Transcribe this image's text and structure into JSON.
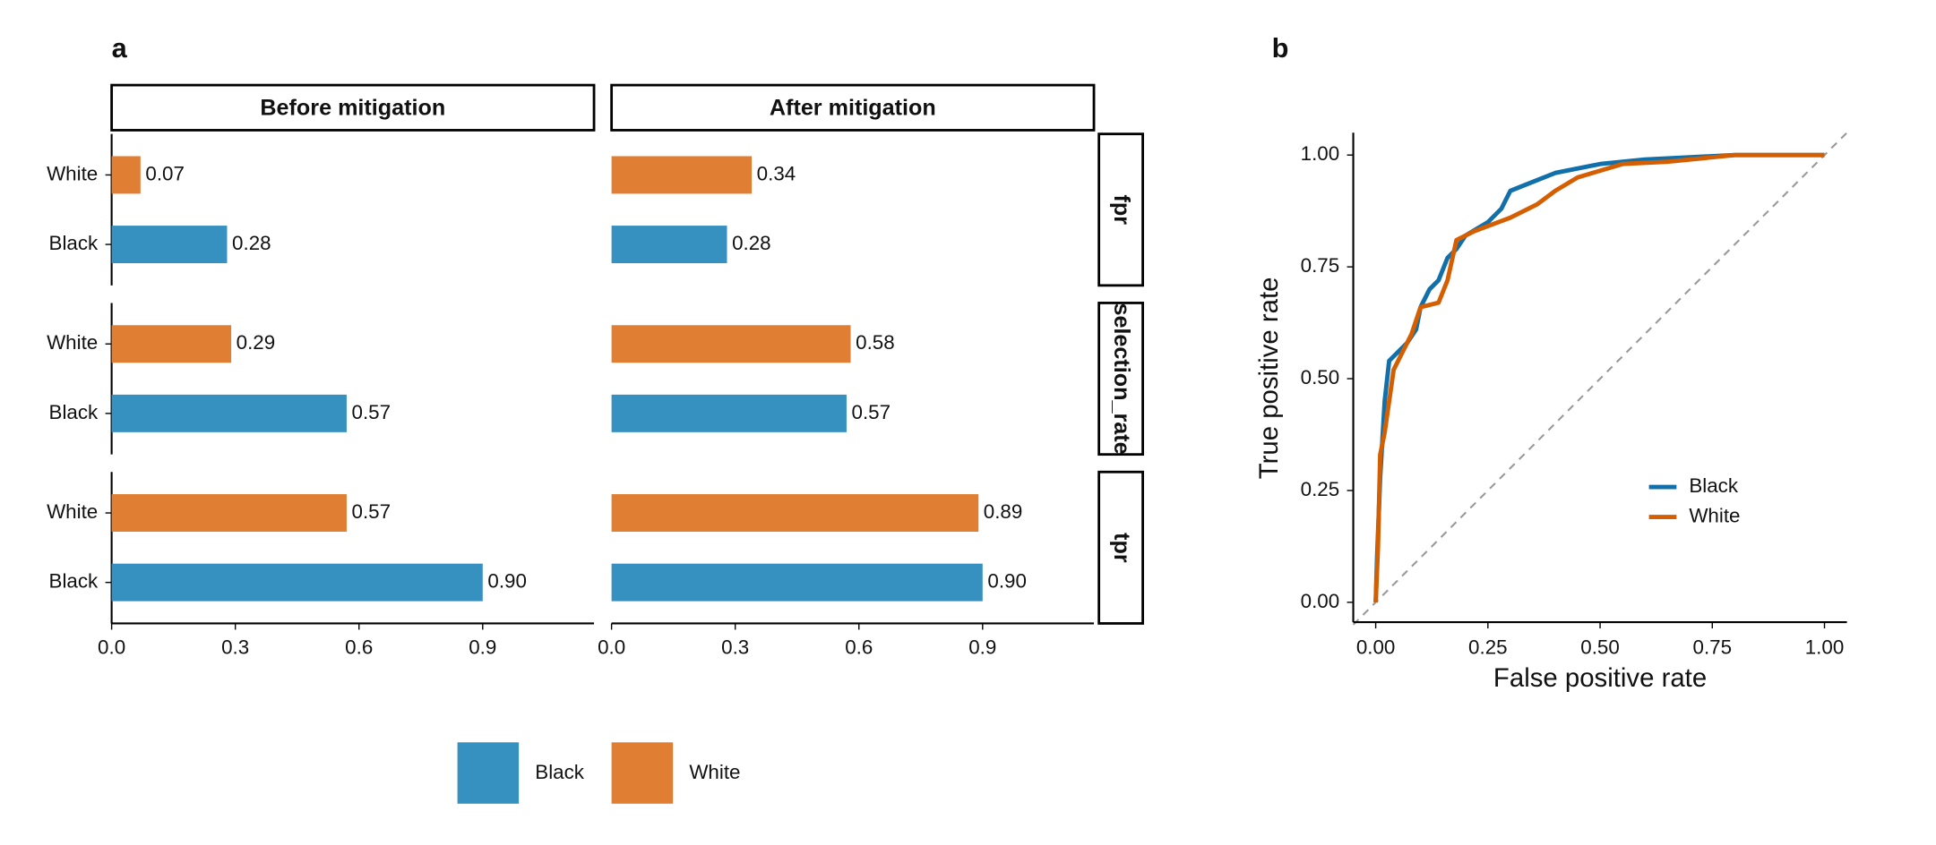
{
  "chart_data": [
    {
      "type": "bar",
      "orientation": "horizontal",
      "panel_label": "a",
      "columns": [
        "Before mitigation",
        "After mitigation"
      ],
      "rows": [
        "fpr",
        "selection_rate",
        "tpr"
      ],
      "categories": [
        "White",
        "Black"
      ],
      "series": [
        {
          "name": "Black",
          "color": "#3690c0",
          "values": [
            [
              0.28,
              0.57,
              0.9
            ],
            [
              0.28,
              0.57,
              0.9
            ]
          ],
          "value_labels": [
            [
              "0.28",
              "0.57",
              "0.90"
            ],
            [
              "0.28",
              "0.57",
              "0.90"
            ]
          ]
        },
        {
          "name": "White",
          "color": "#e07f34",
          "values": [
            [
              0.07,
              0.29,
              0.57
            ],
            [
              0.34,
              0.58,
              0.89
            ]
          ],
          "value_labels": [
            [
              "0.07",
              "0.29",
              "0.57"
            ],
            [
              "0.34",
              "0.58",
              "0.89"
            ]
          ]
        }
      ],
      "xlim": [
        0,
        1.17
      ],
      "xticks": [
        {
          "value": 0,
          "label": "0.0"
        },
        0.3,
        0.6,
        0.9
      ],
      "legend": "bottom"
    },
    {
      "type": "line",
      "panel_label": "b",
      "xlabel": "False positive rate",
      "ylabel": "True positive rate",
      "series": [
        {
          "name": "Black",
          "color": "#1170aa",
          "x": [
            0,
            0.003,
            0.01,
            0.02,
            0.03,
            0.05,
            0.07,
            0.09,
            0.1,
            0.12,
            0.14,
            0.16,
            0.18,
            0.2,
            0.25,
            0.28,
            0.3,
            0.35,
            0.4,
            0.5,
            0.6,
            0.7,
            0.8,
            1
          ],
          "y": [
            0,
            0.1,
            0.28,
            0.45,
            0.54,
            0.56,
            0.58,
            0.61,
            0.66,
            0.7,
            0.72,
            0.77,
            0.79,
            0.82,
            0.85,
            0.88,
            0.92,
            0.94,
            0.96,
            0.98,
            0.99,
            0.995,
            1,
            1
          ]
        },
        {
          "name": "White",
          "color": "#d55e00",
          "x": [
            0,
            0.005,
            0.01,
            0.02,
            0.03,
            0.04,
            0.06,
            0.08,
            0.1,
            0.14,
            0.16,
            0.18,
            0.22,
            0.3,
            0.36,
            0.4,
            0.45,
            0.55,
            0.65,
            0.8,
            1
          ],
          "y": [
            0,
            0.12,
            0.33,
            0.38,
            0.45,
            0.52,
            0.56,
            0.6,
            0.66,
            0.67,
            0.72,
            0.81,
            0.83,
            0.86,
            0.89,
            0.92,
            0.95,
            0.98,
            0.985,
            1,
            1
          ]
        }
      ],
      "xlim": [
        -0.05,
        1.05
      ],
      "ylim": [
        -0.05,
        1.05
      ],
      "xticks": [
        {
          "value": 0,
          "label": "0.00"
        },
        0.25,
        {
          "value": 0.5,
          "label": "0.50"
        },
        0.75,
        {
          "value": 1,
          "label": "1.00"
        }
      ],
      "yticks": [
        {
          "value": 0,
          "label": "0.00"
        },
        0.25,
        {
          "value": 0.5,
          "label": "0.50"
        },
        0.75,
        {
          "value": 1,
          "label": "1.00"
        }
      ],
      "reference_line": true,
      "legend": "inside"
    }
  ]
}
